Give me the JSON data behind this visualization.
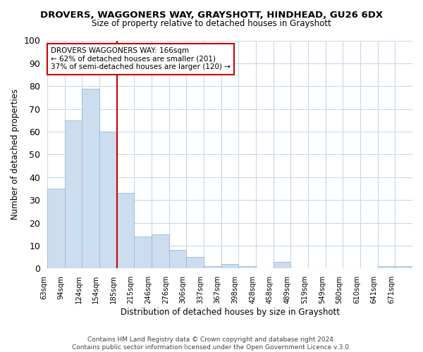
{
  "title": "DROVERS, WAGGONERS WAY, GRAYSHOTT, HINDHEAD, GU26 6DX",
  "subtitle": "Size of property relative to detached houses in Grayshott",
  "xlabel": "Distribution of detached houses by size in Grayshott",
  "ylabel": "Number of detached properties",
  "bar_labels": [
    "63sqm",
    "94sqm",
    "124sqm",
    "154sqm",
    "185sqm",
    "215sqm",
    "246sqm",
    "276sqm",
    "306sqm",
    "337sqm",
    "367sqm",
    "398sqm",
    "428sqm",
    "458sqm",
    "489sqm",
    "519sqm",
    "549sqm",
    "580sqm",
    "610sqm",
    "641sqm",
    "671sqm"
  ],
  "bar_heights": [
    35,
    65,
    79,
    60,
    33,
    14,
    15,
    8,
    5,
    1,
    2,
    1,
    0,
    3,
    0,
    0,
    0,
    0,
    0,
    1,
    1
  ],
  "bar_color": "#ccddf0",
  "bar_edge_color": "#9ab8d8",
  "vline_x_index": 4,
  "vline_color": "#cc0000",
  "annotation_title": "DROVERS WAGGONERS WAY: 166sqm",
  "annotation_line1": "← 62% of detached houses are smaller (201)",
  "annotation_line2": "37% of semi-detached houses are larger (120) →",
  "annotation_box_color": "#ffffff",
  "annotation_box_edge": "#cc0000",
  "ylim": [
    0,
    100
  ],
  "yticks": [
    0,
    10,
    20,
    30,
    40,
    50,
    60,
    70,
    80,
    90,
    100
  ],
  "footer1": "Contains HM Land Registry data © Crown copyright and database right 2024.",
  "footer2": "Contains public sector information licensed under the Open Government Licence v.3.0.",
  "background_color": "#ffffff",
  "grid_color": "#c8d8ec"
}
